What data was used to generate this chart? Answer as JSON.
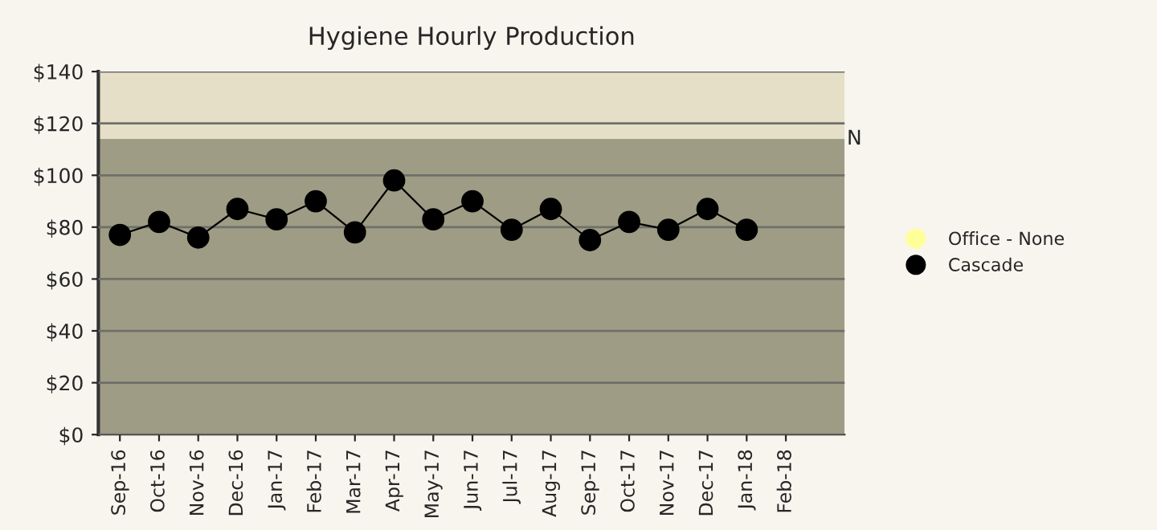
{
  "chart_data": {
    "type": "line",
    "title": "Hygiene Hourly Production",
    "categories": [
      "Sep-16",
      "Oct-16",
      "Nov-16",
      "Dec-16",
      "Jan-17",
      "Feb-17",
      "Mar-17",
      "Apr-17",
      "May-17",
      "Jun-17",
      "Jul-17",
      "Aug-17",
      "Sep-17",
      "Oct-17",
      "Nov-17",
      "Dec-17",
      "Jan-18",
      "Feb-18"
    ],
    "series": [
      {
        "name": "Office - None",
        "color": "#ffff99",
        "values": [
          null,
          null,
          null,
          null,
          null,
          null,
          null,
          null,
          null,
          null,
          null,
          null,
          null,
          null,
          null,
          null,
          null,
          null
        ]
      },
      {
        "name": "Cascade",
        "color": "#000000",
        "values": [
          77,
          82,
          76,
          87,
          83,
          90,
          78,
          98,
          83,
          90,
          79,
          87,
          75,
          82,
          79,
          87,
          79,
          null
        ]
      }
    ],
    "ylim": [
      0,
      140
    ],
    "yticks": [
      {
        "value": 0,
        "label": "$0"
      },
      {
        "value": 20,
        "label": "$20"
      },
      {
        "value": 40,
        "label": "$40"
      },
      {
        "value": 60,
        "label": "$60"
      },
      {
        "value": 80,
        "label": "$80"
      },
      {
        "value": 100,
        "label": "$100"
      },
      {
        "value": 120,
        "label": "$120"
      },
      {
        "value": 140,
        "label": "$140"
      }
    ],
    "bands": [
      {
        "axis": "y",
        "from": 0,
        "to": 114,
        "color": "#9e9c85",
        "label": "N"
      },
      {
        "axis": "y",
        "from": 114,
        "to": 140,
        "color": "#e4dfc6"
      }
    ],
    "grid": "y",
    "legend": "right",
    "marker": "circle",
    "line_style": "solid"
  }
}
